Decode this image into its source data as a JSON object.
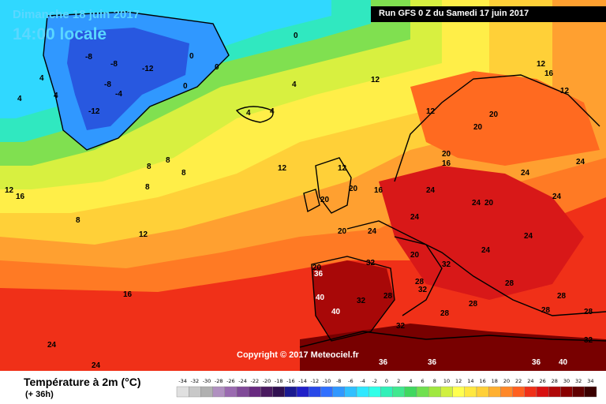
{
  "header": {
    "date_title": "Dimanche 18 juin 2017",
    "time_title": "14:00 locale",
    "run_info": "Run GFS 0 Z du Samedi 17 juin 2017"
  },
  "copyright": "Copyright © 2017 Meteociel.fr",
  "legend": {
    "title": "Température à 2m (°C)",
    "subtitle": "(+ 36h)",
    "scale_values": [
      "-34",
      "-32",
      "-30",
      "-28",
      "-26",
      "-24",
      "-22",
      "-20",
      "-18",
      "-16",
      "-14",
      "-12",
      "-10",
      "-8",
      "-6",
      "-4",
      "-2",
      "0",
      "2",
      "4",
      "6",
      "8",
      "10",
      "12",
      "14",
      "16",
      "18",
      "20",
      "22",
      "24",
      "26",
      "28",
      "30",
      "32",
      "34"
    ],
    "scale_colors": [
      "#e0e0e0",
      "#c8c8c8",
      "#b0b0b0",
      "#b090c0",
      "#9a6ab0",
      "#804a98",
      "#682a80",
      "#4a1a60",
      "#301050",
      "#1a1a90",
      "#2020c8",
      "#2848e8",
      "#3070ff",
      "#3098ff",
      "#30c0ff",
      "#30e8ff",
      "#30ffe8",
      "#30f0b8",
      "#40e890",
      "#40d860",
      "#70e050",
      "#a0e840",
      "#d0f040",
      "#ffff50",
      "#ffe840",
      "#ffd038",
      "#ffb030",
      "#ff8828",
      "#ff6020",
      "#f03018",
      "#d81010",
      "#b00808",
      "#880000",
      "#600000",
      "#3a0000"
    ]
  },
  "map_labels": [
    {
      "t": "-8"
    },
    {
      "t": "-8"
    },
    {
      "t": "-12"
    },
    {
      "t": "-4"
    },
    {
      "t": "-12"
    },
    {
      "t": "-8"
    },
    {
      "t": "0"
    },
    {
      "t": "0"
    },
    {
      "t": "0"
    },
    {
      "t": "0"
    },
    {
      "t": "4"
    },
    {
      "t": "4"
    },
    {
      "t": "4"
    },
    {
      "t": "4"
    },
    {
      "t": "4"
    },
    {
      "t": "4"
    },
    {
      "t": "8"
    },
    {
      "t": "8"
    },
    {
      "t": "8"
    },
    {
      "t": "8"
    },
    {
      "t": "8"
    },
    {
      "t": "12"
    },
    {
      "t": "12"
    },
    {
      "t": "12"
    },
    {
      "t": "12"
    },
    {
      "t": "12"
    },
    {
      "t": "12"
    },
    {
      "t": "12"
    },
    {
      "t": "12"
    },
    {
      "t": "16"
    },
    {
      "t": "16"
    },
    {
      "t": "16"
    },
    {
      "t": "16"
    },
    {
      "t": "16"
    },
    {
      "t": "20"
    },
    {
      "t": "20"
    },
    {
      "t": "20"
    },
    {
      "t": "20"
    },
    {
      "t": "20"
    },
    {
      "t": "20"
    },
    {
      "t": "20"
    },
    {
      "t": "20"
    },
    {
      "t": "20"
    },
    {
      "t": "24"
    },
    {
      "t": "24"
    },
    {
      "t": "24"
    },
    {
      "t": "24"
    },
    {
      "t": "24"
    },
    {
      "t": "24"
    },
    {
      "t": "24"
    },
    {
      "t": "24"
    },
    {
      "t": "24"
    },
    {
      "t": "24"
    },
    {
      "t": "24"
    },
    {
      "t": "28"
    },
    {
      "t": "28"
    },
    {
      "t": "28"
    },
    {
      "t": "28"
    },
    {
      "t": "28"
    },
    {
      "t": "28"
    },
    {
      "t": "28"
    },
    {
      "t": "28"
    },
    {
      "t": "32"
    },
    {
      "t": "32"
    },
    {
      "t": "32"
    },
    {
      "t": "32"
    },
    {
      "t": "32"
    },
    {
      "t": "32"
    },
    {
      "t": "36"
    },
    {
      "t": "36"
    },
    {
      "t": "36"
    },
    {
      "t": "36"
    },
    {
      "t": "40"
    },
    {
      "t": "40"
    },
    {
      "t": "40"
    }
  ]
}
